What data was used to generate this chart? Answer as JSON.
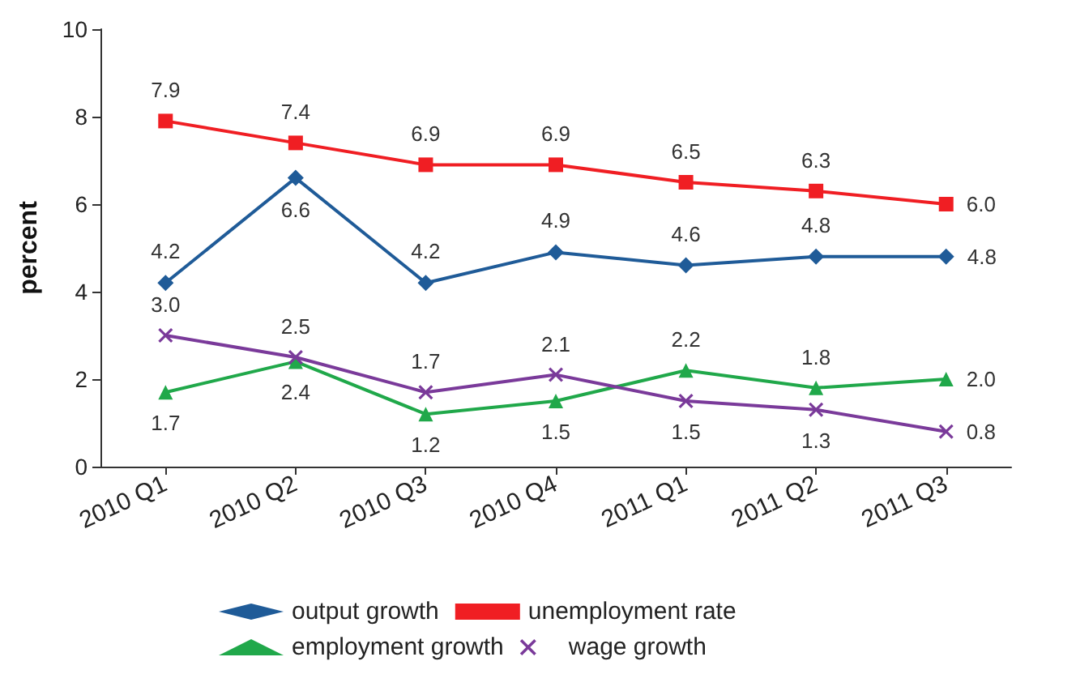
{
  "chart_data": {
    "type": "line",
    "ylabel": "percent",
    "categories": [
      "2010 Q1",
      "2010 Q2",
      "2010 Q3",
      "2010 Q4",
      "2011 Q1",
      "2011 Q2",
      "2011 Q3"
    ],
    "series": [
      {
        "name": "output growth",
        "color": "#1f5b98",
        "marker": "diamond",
        "values": [
          4.2,
          6.6,
          4.2,
          4.9,
          4.6,
          4.8,
          4.8
        ],
        "value_labels": [
          "4.2",
          "6.6",
          "4.2",
          "4.9",
          "4.6",
          "4.8",
          "4.8"
        ]
      },
      {
        "name": "unemployment rate",
        "color": "#f01e23",
        "marker": "square",
        "values": [
          7.9,
          7.4,
          6.9,
          6.9,
          6.5,
          6.3,
          6.0
        ],
        "value_labels": [
          "7.9",
          "7.4",
          "6.9",
          "6.9",
          "6.5",
          "6.3",
          "6.0"
        ]
      },
      {
        "name": "employment growth",
        "color": "#20a84a",
        "marker": "triangle",
        "values": [
          1.7,
          2.4,
          1.2,
          1.5,
          2.2,
          1.8,
          2.0
        ],
        "value_labels": [
          "1.7",
          "2.4",
          "1.2",
          "1.5",
          "2.2",
          "1.8",
          "2.0"
        ]
      },
      {
        "name": "wage growth",
        "color": "#7a3a9a",
        "marker": "cross",
        "values": [
          3.0,
          2.5,
          1.7,
          2.1,
          1.5,
          1.3,
          0.8
        ],
        "value_labels": [
          "3.0",
          "2.5",
          "1.7",
          "2.1",
          "1.5",
          "1.3",
          "0.8"
        ]
      }
    ],
    "ylim": [
      0,
      10
    ],
    "yticks": [
      0,
      2,
      4,
      6,
      8,
      10
    ],
    "grid": false,
    "legend": "bottom",
    "line_style": "solid"
  }
}
